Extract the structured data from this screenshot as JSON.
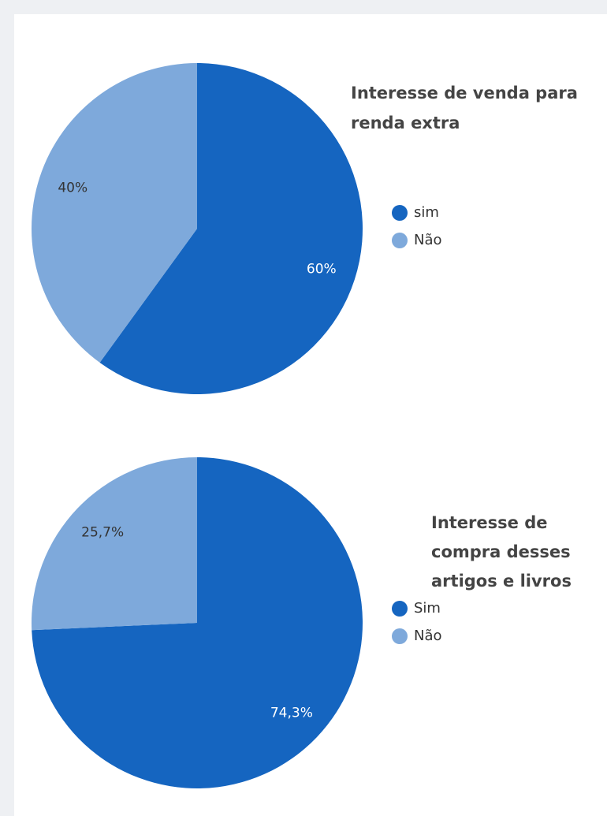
{
  "chart_data": [
    {
      "type": "pie",
      "title": "Interesse de venda para renda extra",
      "categories": [
        "sim",
        "Não"
      ],
      "values": [
        60,
        40
      ],
      "value_labels": [
        "60%",
        "40%"
      ],
      "colors": [
        "#1565c0",
        "#7ea9db"
      ]
    },
    {
      "type": "pie",
      "title": "Interesse de compra desses artigos e livros",
      "categories": [
        "Sim",
        "Não"
      ],
      "values": [
        74.3,
        25.7
      ],
      "value_labels": [
        "74,3%",
        "25,7%"
      ],
      "colors": [
        "#1565c0",
        "#7ea9db"
      ]
    }
  ]
}
